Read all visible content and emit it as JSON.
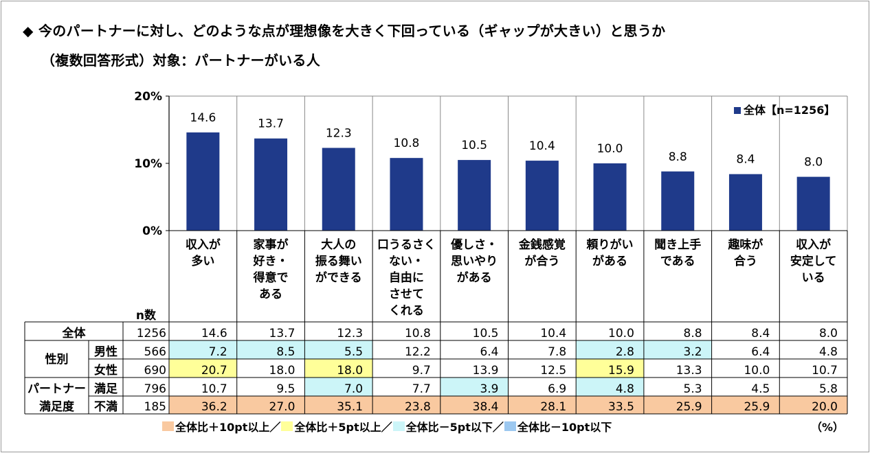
{
  "title_line1": "◆ 今のパートナーに対し、どのような点が理想像を大きく下回っている（ギャップが大きい）と思うか",
  "title_line2": "（複数回答形式）対象：パートナーがいる人",
  "chart_data": {
    "type": "bar",
    "categories": [
      "収入が多い",
      "家事が好き・得意である",
      "大人の振る舞いができる",
      "口うるさくない・自由にさせてくれる",
      "優しさ・思いやりがある",
      "金銭感覚が合う",
      "頼りがいがある",
      "聞き上手である",
      "趣味が合う",
      "収入が安定している"
    ],
    "category_lines": [
      [
        "収入が",
        "多い"
      ],
      [
        "家事が",
        "好き・",
        "得意で",
        "ある"
      ],
      [
        "大人の",
        "振る舞い",
        "ができる"
      ],
      [
        "口うるさく",
        "ない・",
        "自由に",
        "させて",
        "くれる"
      ],
      [
        "優しさ・",
        "思いやり",
        "がある"
      ],
      [
        "金銭感覚",
        "が合う"
      ],
      [
        "頼りがい",
        "がある"
      ],
      [
        "聞き上手",
        "である"
      ],
      [
        "趣味が",
        "合う"
      ],
      [
        "収入が",
        "安定して",
        "いる"
      ]
    ],
    "series": [
      {
        "name": "全体【n=1256】",
        "values": [
          14.6,
          13.7,
          12.3,
          10.8,
          10.5,
          10.4,
          10.0,
          8.8,
          8.4,
          8.0
        ],
        "color": "#1f3a8a"
      }
    ],
    "value_labels": [
      "14.6",
      "13.7",
      "12.3",
      "10.8",
      "10.5",
      "10.4",
      "10.0",
      "8.8",
      "8.4",
      "8.0"
    ],
    "yticks": [
      "0%",
      "10%",
      "20%"
    ],
    "ylim": [
      0,
      20
    ],
    "legend_position": "top-right"
  },
  "table": {
    "n_header": "n数",
    "rows": [
      {
        "group": "全体",
        "sub": "",
        "n": "1256",
        "values": [
          "14.6",
          "13.7",
          "12.3",
          "10.8",
          "10.5",
          "10.4",
          "10.0",
          "8.8",
          "8.4",
          "8.0"
        ],
        "hl": [
          "",
          "",
          "",
          "",
          "",
          "",
          "",
          "",
          "",
          ""
        ]
      },
      {
        "group": "性別",
        "sub": "男性",
        "n": "566",
        "values": [
          "7.2",
          "8.5",
          "5.5",
          "12.2",
          "6.4",
          "7.8",
          "2.8",
          "3.2",
          "6.4",
          "4.8"
        ],
        "hl": [
          "c",
          "c",
          "c",
          "",
          "",
          "",
          "c",
          "c",
          "",
          ""
        ]
      },
      {
        "group": "",
        "sub": "女性",
        "n": "690",
        "values": [
          "20.7",
          "18.0",
          "18.0",
          "9.7",
          "13.9",
          "12.5",
          "15.9",
          "13.3",
          "10.0",
          "10.7"
        ],
        "hl": [
          "y",
          "",
          "y",
          "",
          "",
          "",
          "y",
          "",
          "",
          ""
        ]
      },
      {
        "group": "パートナー",
        "sub": "満足",
        "n": "796",
        "values": [
          "10.7",
          "9.5",
          "7.0",
          "7.7",
          "3.9",
          "6.9",
          "4.8",
          "5.3",
          "4.5",
          "5.8"
        ],
        "hl": [
          "",
          "",
          "c",
          "",
          "c",
          "",
          "c",
          "",
          "",
          ""
        ]
      },
      {
        "group": "満足度",
        "sub": "不満",
        "n": "185",
        "values": [
          "36.2",
          "27.0",
          "35.1",
          "23.8",
          "38.4",
          "28.1",
          "33.5",
          "25.9",
          "25.9",
          "20.0"
        ],
        "hl": [
          "o",
          "o",
          "o",
          "o",
          "o",
          "o",
          "o",
          "o",
          "o",
          "o"
        ]
      }
    ]
  },
  "legend": [
    {
      "label": "全体比＋10pt以上／",
      "color": "#f9c9a0"
    },
    {
      "label": "全体比＋5pt以上／",
      "color": "#ffff99"
    },
    {
      "label": "全体比－5pt以下／",
      "color": "#ccf5f8"
    },
    {
      "label": "全体比－10pt以下",
      "color": "#9cc8f0"
    }
  ],
  "unit_label": "（%）"
}
